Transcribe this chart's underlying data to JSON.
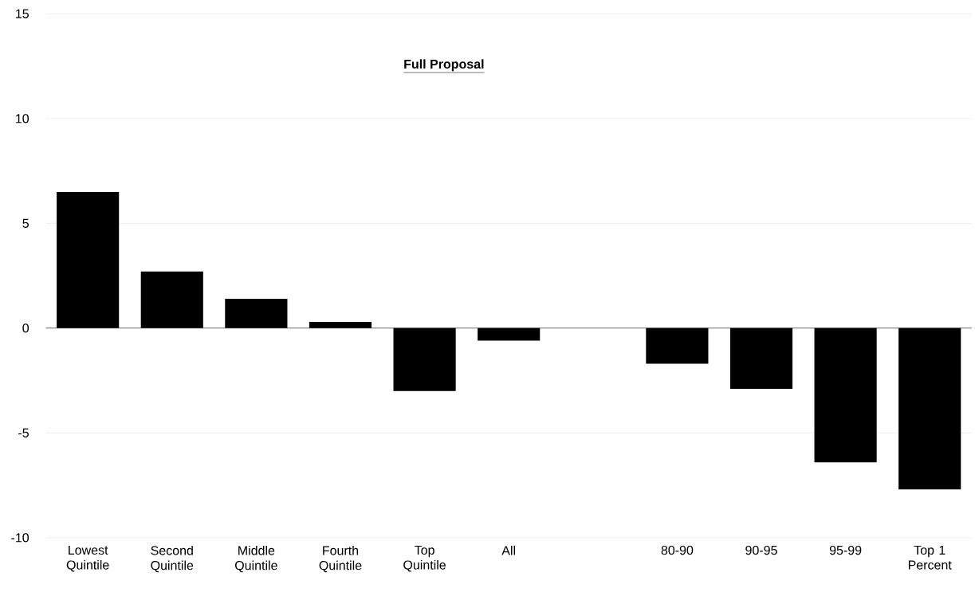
{
  "chart_data": {
    "type": "bar",
    "title": "Full Proposal",
    "categories": [
      "Lowest Quintile",
      "Second Quintile",
      "Middle Quintile",
      "Fourth Quintile",
      "Top Quintile",
      "All",
      null,
      "80-90",
      "90-95",
      "95-99",
      "Top 1 Percent"
    ],
    "values": [
      6.5,
      2.7,
      1.4,
      0.3,
      -3.0,
      -0.6,
      null,
      -1.7,
      -2.9,
      -6.4,
      -7.7
    ],
    "color": "#000000",
    "ylim": [
      -10,
      15
    ],
    "yticks": [
      -10,
      -5,
      0,
      5,
      10,
      15
    ],
    "grid": "y"
  }
}
